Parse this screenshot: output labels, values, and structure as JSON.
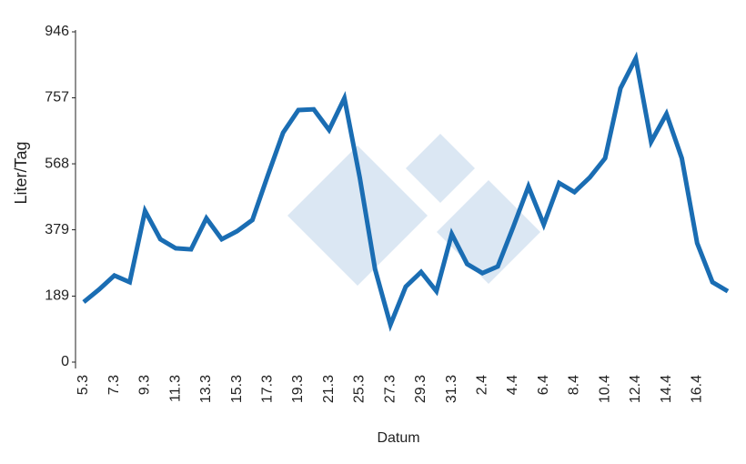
{
  "chart_data": {
    "type": "line",
    "x_label": "Datum",
    "y_label": "Liter/Tag",
    "categories": [
      "5.3",
      null,
      "7.3",
      null,
      "9.3",
      null,
      "11.3",
      null,
      "13.3",
      null,
      "15.3",
      null,
      "17.3",
      null,
      "19.3",
      null,
      "21.3",
      null,
      "25.3",
      null,
      "27.3",
      null,
      "29.3",
      null,
      "31.3",
      null,
      "2.4",
      null,
      "4.4",
      null,
      "6.4",
      null,
      "8.4",
      null,
      "10.4",
      null,
      "12.4",
      null,
      "14.4",
      null,
      "16.4",
      null,
      null
    ],
    "series": [
      {
        "color": "#1a6db3",
        "values": [
          172,
          208,
          248,
          229,
          433,
          352,
          326,
          323,
          412,
          352,
          375,
          407,
          534,
          657,
          722,
          724,
          665,
          756,
          529,
          266,
          107,
          216,
          258,
          203,
          367,
          281,
          255,
          274,
          386,
          503,
          394,
          513,
          487,
          529,
          584,
          784,
          870,
          631,
          711,
          584,
          341,
          229,
          203
        ]
      }
    ],
    "ylim": [
      0,
      946
    ],
    "yticks": [
      0,
      189,
      379,
      568,
      757,
      946
    ]
  }
}
